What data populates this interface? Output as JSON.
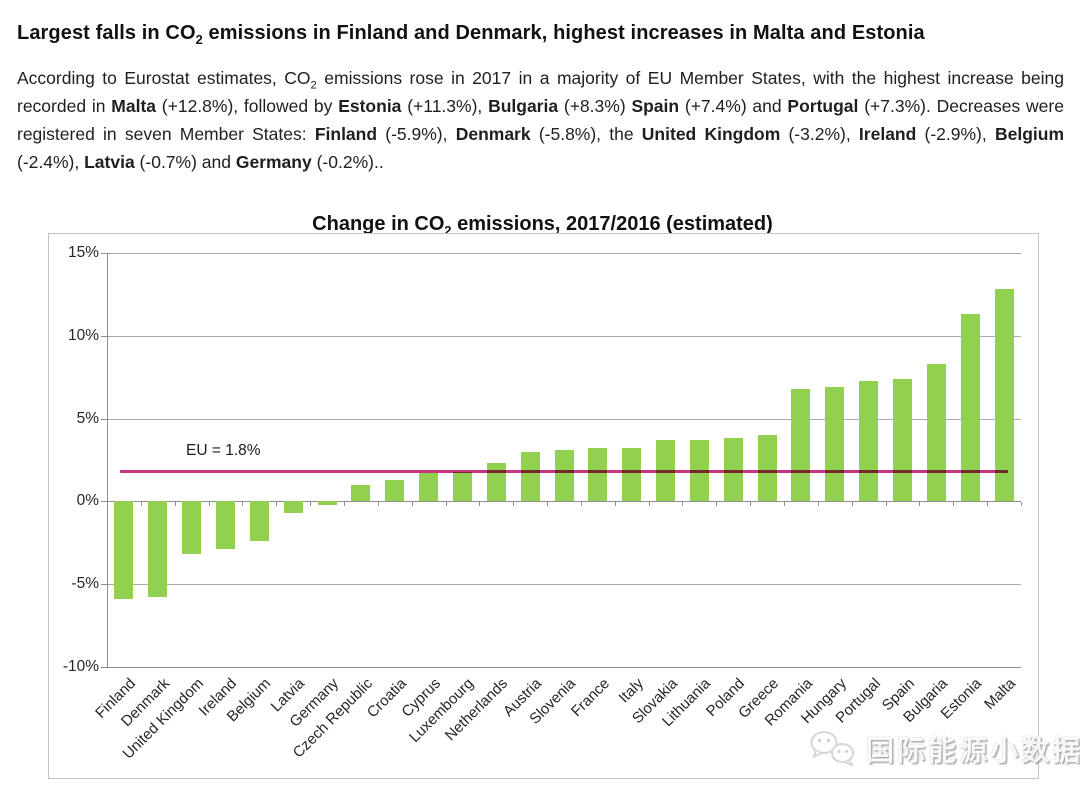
{
  "page": {
    "headline_runs": [
      {
        "text": "Largest falls in CO"
      },
      {
        "text": "2",
        "sub": true
      },
      {
        "text": " emissions in Finland and Denmark, highest increases in Malta and Estonia"
      }
    ],
    "paragraph_runs": [
      {
        "text": "According to Eurostat estimates, CO"
      },
      {
        "text": "2",
        "sub": true
      },
      {
        "text": " emissions rose in 2017 in a majority of EU Member States, with the highest increase being recorded in "
      },
      {
        "text": "Malta",
        "bold": true
      },
      {
        "text": " (+12.8%), followed by "
      },
      {
        "text": "Estonia",
        "bold": true
      },
      {
        "text": " (+11.3%), "
      },
      {
        "text": "Bulgaria",
        "bold": true
      },
      {
        "text": " (+8.3%) "
      },
      {
        "text": "Spain",
        "bold": true
      },
      {
        "text": " (+7.4%) and "
      },
      {
        "text": "Portugal",
        "bold": true
      },
      {
        "text": " (+7.3%). Decreases were registered in seven Member States: "
      },
      {
        "text": "Finland",
        "bold": true
      },
      {
        "text": " (-5.9%), "
      },
      {
        "text": "Denmark",
        "bold": true
      },
      {
        "text": " (-5.8%), the "
      },
      {
        "text": "United Kingdom",
        "bold": true
      },
      {
        "text": " (-3.2%), "
      },
      {
        "text": "Ireland",
        "bold": true
      },
      {
        "text": " (-2.9%), "
      },
      {
        "text": "Belgium",
        "bold": true
      },
      {
        "text": " (-2.4%), "
      },
      {
        "text": "Latvia",
        "bold": true
      },
      {
        "text": " (-0.7%) and "
      },
      {
        "text": "Germany",
        "bold": true
      },
      {
        "text": " (-0.2%).."
      }
    ]
  },
  "chart_data": {
    "type": "bar",
    "title": "Change in CO2 emissions, 2017/2016 (estimated)",
    "title_runs": [
      {
        "text": "Change in CO"
      },
      {
        "text": "2",
        "sub": true
      },
      {
        "text": " emissions, 2017/2016 (estimated)"
      }
    ],
    "categories": [
      "Finland",
      "Denmark",
      "United Kingdom",
      "Ireland",
      "Belgium",
      "Latvia",
      "Germany",
      "Czech Republic",
      "Croatia",
      "Cyprus",
      "Luxembourg",
      "Netherlands",
      "Austria",
      "Slovenia",
      "France",
      "Italy",
      "Slovakia",
      "Lithuania",
      "Poland",
      "Greece",
      "Romania",
      "Hungary",
      "Portugal",
      "Spain",
      "Bulgaria",
      "Estonia",
      "Malta"
    ],
    "values": [
      -5.9,
      -5.8,
      -3.2,
      -2.9,
      -2.4,
      -0.7,
      -0.2,
      1.0,
      1.3,
      1.7,
      1.8,
      2.3,
      3.0,
      3.1,
      3.2,
      3.2,
      3.7,
      3.7,
      3.8,
      4.0,
      6.8,
      6.9,
      7.3,
      7.4,
      8.3,
      11.3,
      12.8
    ],
    "xlabel": "",
    "ylabel": "",
    "ylim": [
      -10,
      15
    ],
    "yticks": [
      {
        "label": "15%",
        "value": 15
      },
      {
        "label": "10%",
        "value": 10
      },
      {
        "label": "5%",
        "value": 5
      },
      {
        "label": "0%",
        "value": 0
      },
      {
        "label": "-5%",
        "value": -5
      },
      {
        "label": "-10%",
        "value": -10
      }
    ],
    "grid": true,
    "legend": "none",
    "x_tick_rotation": 45,
    "bar_color": "#92D050",
    "reference_line": {
      "label": "EU = 1.8%",
      "value": 1.8,
      "color": "#C73480"
    }
  },
  "watermark": {
    "text": "国际能源小数据",
    "icon": "wechat-icon"
  }
}
